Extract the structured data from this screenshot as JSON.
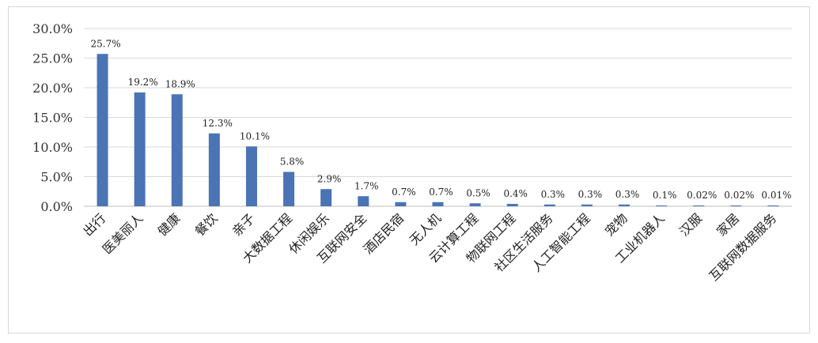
{
  "chart_data": {
    "type": "bar",
    "categories": [
      "出行",
      "医美丽人",
      "健康",
      "餐饮",
      "亲子",
      "大数据工程",
      "休闲娱乐",
      "互联网安全",
      "酒店民宿",
      "无人机",
      "云计算工程",
      "物联网工程",
      "社区生活服务",
      "人工智能工程",
      "宠物",
      "工业机器人",
      "汉服",
      "家居",
      "互联网数据服务"
    ],
    "values": [
      25.7,
      19.2,
      18.9,
      12.3,
      10.1,
      5.8,
      2.9,
      1.7,
      0.7,
      0.7,
      0.5,
      0.4,
      0.3,
      0.3,
      0.3,
      0.1,
      0.02,
      0.02,
      0.01
    ],
    "data_labels": [
      "25.7%",
      "19.2%",
      "18.9%",
      "12.3%",
      "10.1%",
      "5.8%",
      "2.9%",
      "1.7%",
      "0.7%",
      "0.7%",
      "0.5%",
      "0.4%",
      "0.3%",
      "0.3%",
      "0.3%",
      "0.1%",
      "0.02%",
      "0.02%",
      "0.01%"
    ],
    "y_ticks": [
      "0.0%",
      "5.0%",
      "10.0%",
      "15.0%",
      "20.0%",
      "25.0%",
      "30.0%"
    ],
    "ylim": [
      0,
      30
    ],
    "grid": true,
    "legend": "none",
    "colors": {
      "bar": "#4a74b4",
      "grid": "#d9d9d9"
    }
  }
}
